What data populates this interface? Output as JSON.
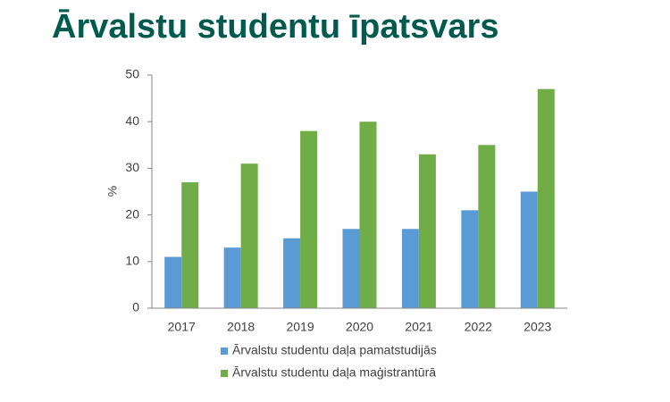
{
  "chart_data": {
    "type": "bar",
    "title": "Ārvalstu studentu īpatsvars",
    "y_label": "%",
    "categories": [
      "2017",
      "2018",
      "2019",
      "2020",
      "2021",
      "2022",
      "2023"
    ],
    "series": [
      {
        "name": "Ārvalstu studentu daļa pamatstudijās",
        "color": "#5b9bd5",
        "values": [
          11,
          13,
          15,
          17,
          17,
          21,
          25
        ]
      },
      {
        "name": "Ārvalstu studentu daļa maģistrantūrā",
        "color": "#70ad47",
        "values": [
          27,
          31,
          38,
          40,
          33,
          35,
          47
        ]
      }
    ],
    "ylim": [
      0,
      50
    ],
    "yticks": [
      0,
      10,
      20,
      30,
      40,
      50
    ],
    "grid": false
  }
}
